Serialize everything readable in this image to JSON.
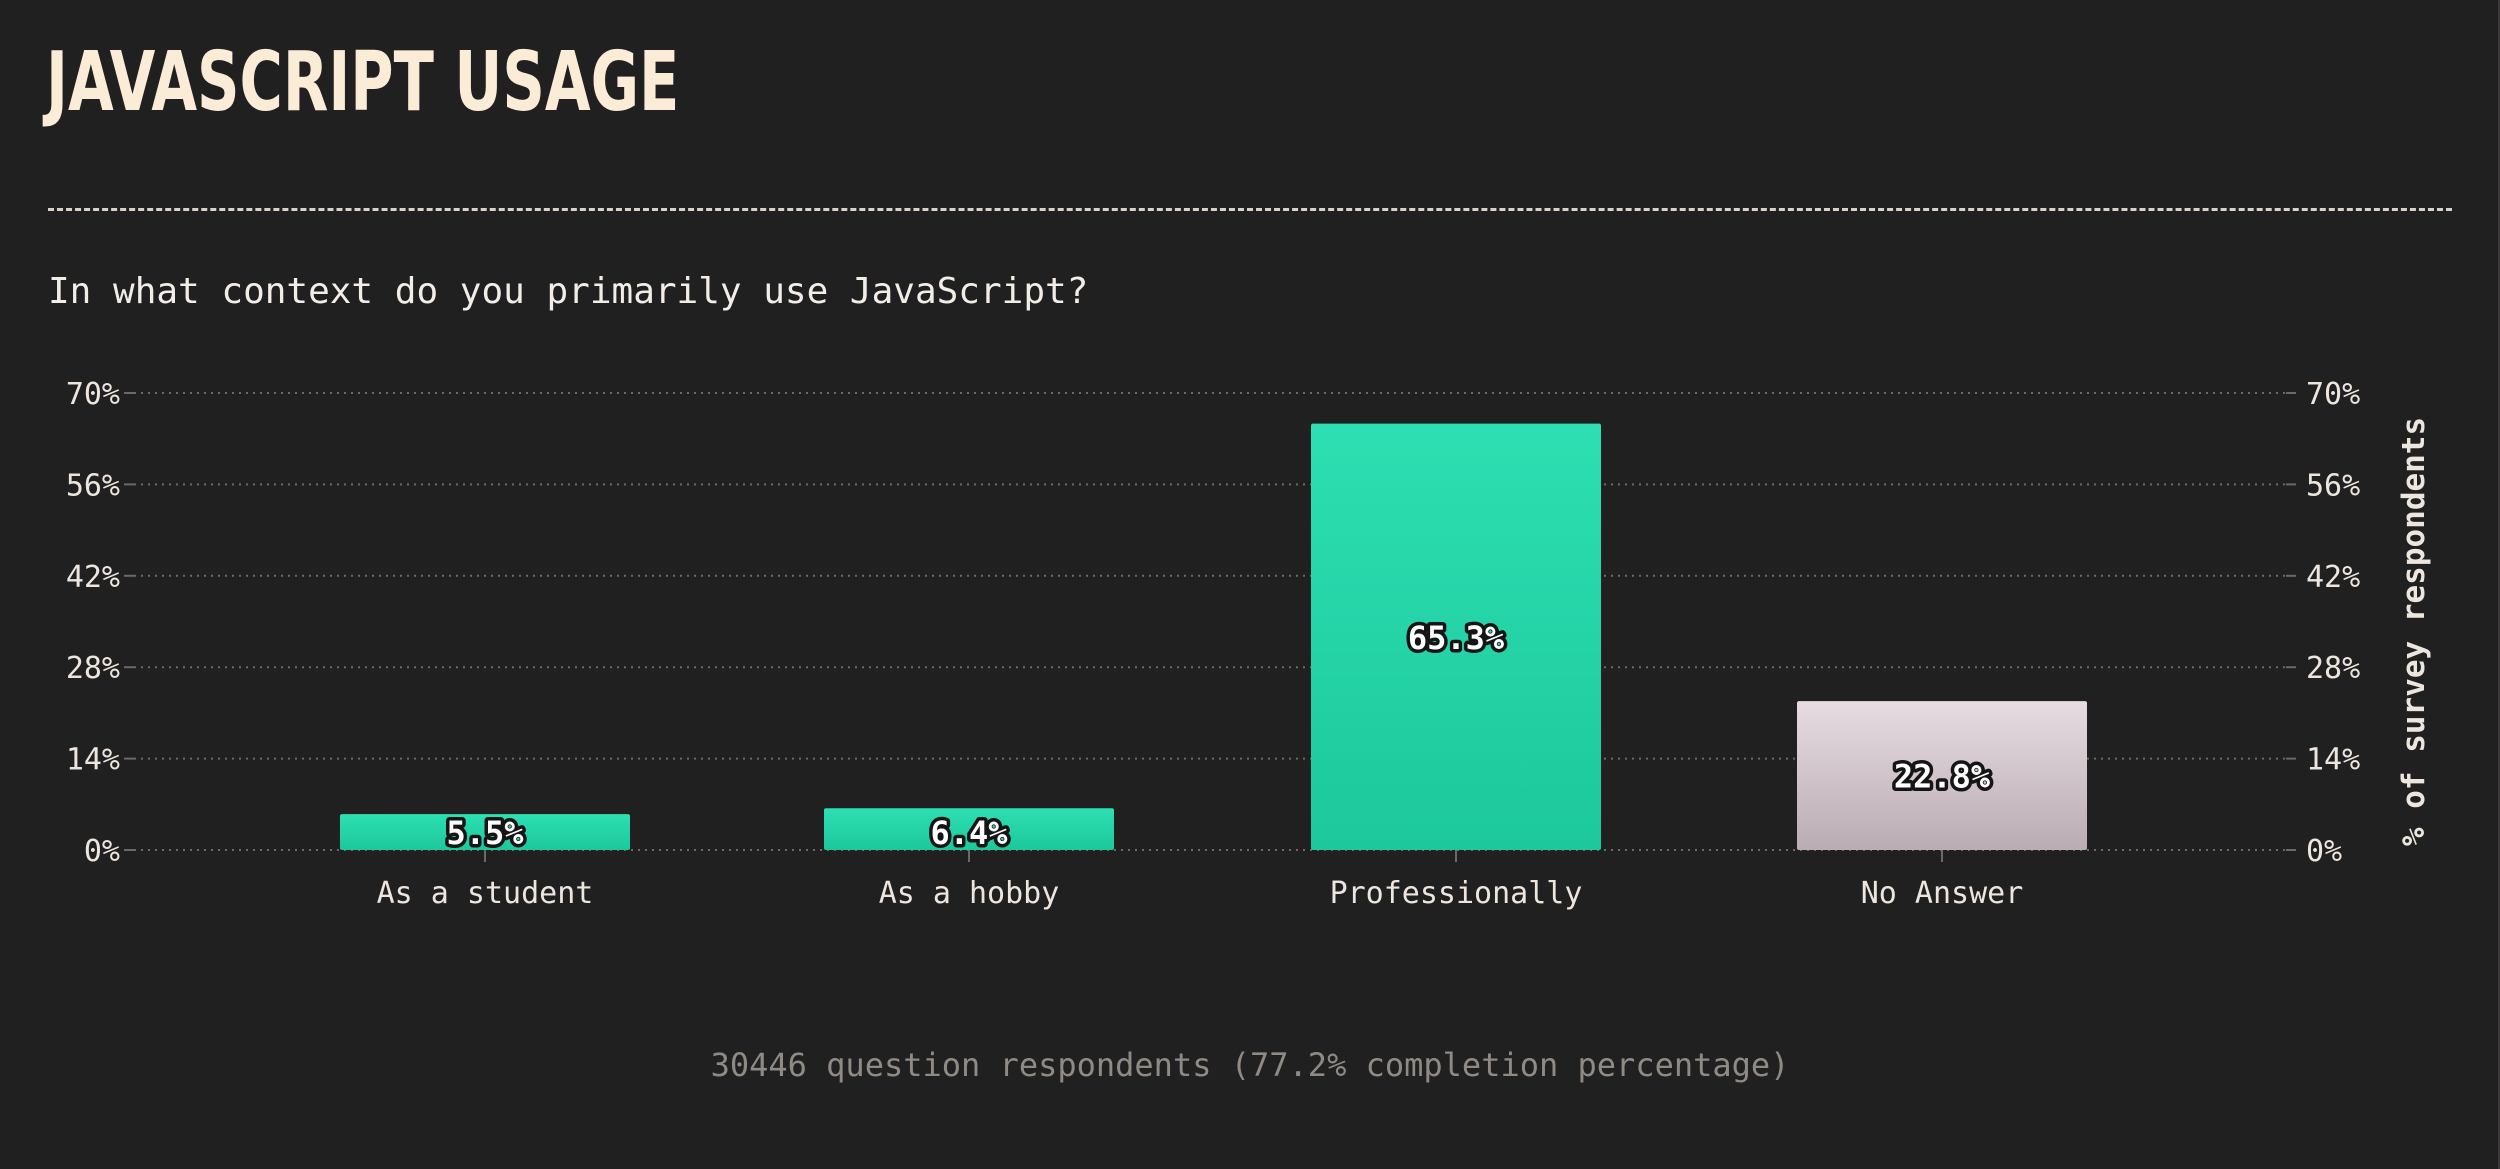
{
  "header": {
    "title": "JAVASCRIPT USAGE",
    "question": "In what context do you primarily use JavaScript?"
  },
  "footer": {
    "note": "30446 question respondents (77.2% completion percentage)"
  },
  "colors": {
    "background": "#212020",
    "title": "#fbecd8",
    "bar_primary_top": "#2ddfb2",
    "bar_primary_bottom": "#1cc89c",
    "bar_no_answer_top": "#e8dce3",
    "bar_no_answer_bottom": "#b9adb3",
    "grid": "#6d6966",
    "axis_text": "#ece6de",
    "footer_text": "#8f8a84"
  },
  "chart_data": {
    "type": "bar",
    "categories": [
      "As a student",
      "As a hobby",
      "Professionally",
      "No Answer"
    ],
    "values": [
      5.5,
      6.4,
      65.3,
      22.8
    ],
    "value_labels": [
      "5.5%",
      "6.4%",
      "65.3%",
      "22.8%"
    ],
    "bar_styles": [
      "primary",
      "primary",
      "primary",
      "no-answer"
    ],
    "ylabel": "% of survey respondents",
    "ylim": [
      0,
      70
    ],
    "yticks": [
      0,
      14,
      28,
      42,
      56,
      70
    ],
    "ytick_labels": [
      "0%",
      "14%",
      "28%",
      "42%",
      "56%",
      "70%"
    ],
    "grid": true,
    "axis_labels_both_sides": true
  }
}
